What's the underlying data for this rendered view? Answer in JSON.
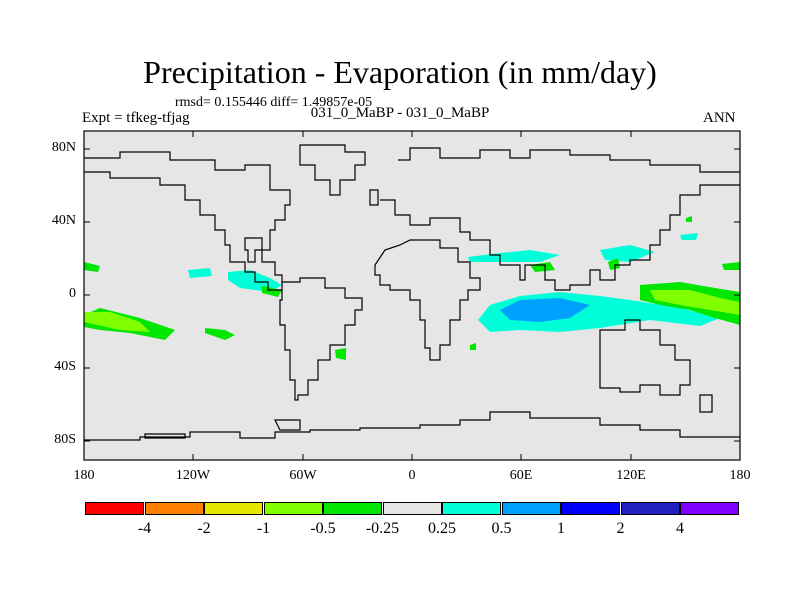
{
  "title": "Precipitation - Evaporation (in mm/day)",
  "stats": "rmsd= 0.155446 diff= 1.49857e-05",
  "subtitle_left": "Expt = tfkeg-tfjag",
  "subtitle_center": "031_0_MaBP - 031_0_MaBP",
  "subtitle_right": "ANN",
  "y_labels": [
    "80N",
    "40N",
    "0",
    "40S",
    "80S"
  ],
  "x_labels": [
    "180",
    "120W",
    "60W",
    "0",
    "60E",
    "120E",
    "180"
  ],
  "colorbar": {
    "colors": [
      "#ff0000",
      "#ff8000",
      "#e6e600",
      "#80ff00",
      "#00e600",
      "#e6e6e6",
      "#00ffd9",
      "#00a0ff",
      "#0000ff",
      "#2020c0",
      "#8000ff"
    ],
    "labels": [
      "-4",
      "-2",
      "-1",
      "-0.5",
      "-0.25",
      "0.25",
      "0.5",
      "1",
      "2",
      "4"
    ]
  },
  "colors": {
    "ocean_land_fill": "#e6e6e6",
    "coast": "#000000",
    "green": "#00e600",
    "lightgreen": "#80ff00",
    "cyan": "#00ffd9",
    "blue": "#00a0ff"
  }
}
